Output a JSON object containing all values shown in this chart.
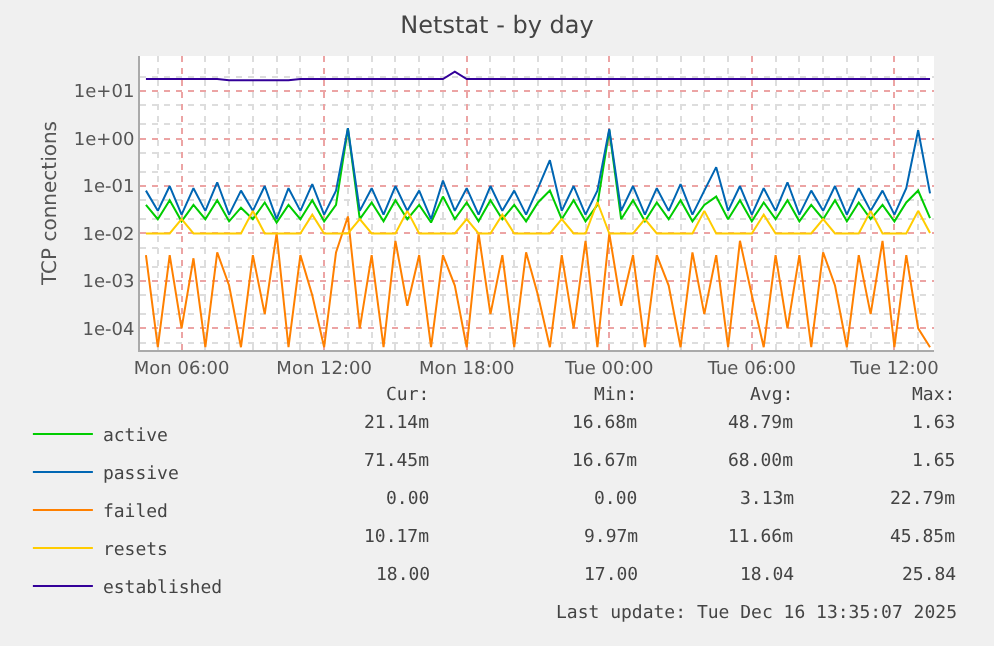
{
  "chart_data": {
    "type": "line",
    "title": "Netstat - by day",
    "ylabel": "TCP connections",
    "log": true,
    "grid": true,
    "legend": "bottom",
    "x": [
      "2025-12-15T04:30",
      "2025-12-15T05:00",
      "2025-12-15T05:30",
      "2025-12-15T06:00",
      "2025-12-15T06:30",
      "2025-12-15T07:00",
      "2025-12-15T07:30",
      "2025-12-15T08:00",
      "2025-12-15T08:30",
      "2025-12-15T09:00",
      "2025-12-15T09:30",
      "2025-12-15T10:00",
      "2025-12-15T10:30",
      "2025-12-15T11:00",
      "2025-12-15T11:30",
      "2025-12-15T12:00",
      "2025-12-15T12:30",
      "2025-12-15T13:00",
      "2025-12-15T13:30",
      "2025-12-15T14:00",
      "2025-12-15T14:30",
      "2025-12-15T15:00",
      "2025-12-15T15:30",
      "2025-12-15T16:00",
      "2025-12-15T16:30",
      "2025-12-15T17:00",
      "2025-12-15T17:30",
      "2025-12-15T18:00",
      "2025-12-15T18:30",
      "2025-12-15T19:00",
      "2025-12-15T19:30",
      "2025-12-15T20:00",
      "2025-12-15T20:30",
      "2025-12-15T21:00",
      "2025-12-15T21:30",
      "2025-12-15T22:00",
      "2025-12-15T22:30",
      "2025-12-15T23:00",
      "2025-12-15T23:30",
      "2025-12-16T00:00",
      "2025-12-16T00:30",
      "2025-12-16T01:00",
      "2025-12-16T01:30",
      "2025-12-16T02:00",
      "2025-12-16T02:30",
      "2025-12-16T03:00",
      "2025-12-16T03:30",
      "2025-12-16T04:00",
      "2025-12-16T04:30",
      "2025-12-16T05:00",
      "2025-12-16T05:30",
      "2025-12-16T06:00",
      "2025-12-16T06:30",
      "2025-12-16T07:00",
      "2025-12-16T07:30",
      "2025-12-16T08:00",
      "2025-12-16T08:30",
      "2025-12-16T09:00",
      "2025-12-16T09:30",
      "2025-12-16T10:00",
      "2025-12-16T10:30",
      "2025-12-16T11:00",
      "2025-12-16T11:30",
      "2025-12-16T12:00",
      "2025-12-16T12:30",
      "2025-12-16T13:00",
      "2025-12-16T13:30"
    ],
    "xlim": [
      "2025-12-15T04:15",
      "2025-12-16T13:40"
    ],
    "xticks": [
      {
        "value": "2025-12-15T06:00",
        "label": "Mon 06:00"
      },
      {
        "value": "2025-12-15T12:00",
        "label": "Mon 12:00"
      },
      {
        "value": "2025-12-15T18:00",
        "label": "Mon 18:00"
      },
      {
        "value": "2025-12-16T00:00",
        "label": "Tue 00:00"
      },
      {
        "value": "2025-12-16T06:00",
        "label": "Tue 06:00"
      },
      {
        "value": "2025-12-16T12:00",
        "label": "Tue 12:00"
      }
    ],
    "ylim": [
      3.5e-05,
      55
    ],
    "yticks": [
      {
        "value": 0.0001,
        "label": "1e-04"
      },
      {
        "value": 0.001,
        "label": "1e-03"
      },
      {
        "value": 0.01,
        "label": "1e-02"
      },
      {
        "value": 0.1,
        "label": "1e-01"
      },
      {
        "value": 1,
        "label": "1e+00"
      },
      {
        "value": 10,
        "label": "1e+01"
      }
    ],
    "series": [
      {
        "name": "active",
        "color": "#00cc00",
        "values": [
          0.04,
          0.02,
          0.05,
          0.018,
          0.04,
          0.02,
          0.05,
          0.018,
          0.035,
          0.02,
          0.045,
          0.017,
          0.04,
          0.02,
          0.05,
          0.018,
          0.04,
          1.63,
          0.02,
          0.045,
          0.018,
          0.05,
          0.02,
          0.04,
          0.017,
          0.06,
          0.02,
          0.045,
          0.018,
          0.05,
          0.02,
          0.04,
          0.018,
          0.045,
          0.08,
          0.02,
          0.05,
          0.018,
          0.04,
          1.5,
          0.02,
          0.05,
          0.018,
          0.045,
          0.02,
          0.05,
          0.018,
          0.04,
          0.06,
          0.02,
          0.05,
          0.018,
          0.045,
          0.02,
          0.05,
          0.018,
          0.04,
          0.02,
          0.05,
          0.018,
          0.045,
          0.02,
          0.04,
          0.018,
          0.045,
          0.08,
          0.021
        ]
      },
      {
        "name": "passive",
        "color": "#0066b3",
        "values": [
          0.08,
          0.03,
          0.1,
          0.025,
          0.09,
          0.03,
          0.12,
          0.025,
          0.08,
          0.03,
          0.1,
          0.02,
          0.09,
          0.03,
          0.11,
          0.025,
          0.08,
          1.65,
          0.03,
          0.09,
          0.025,
          0.1,
          0.03,
          0.08,
          0.02,
          0.13,
          0.03,
          0.09,
          0.025,
          0.1,
          0.03,
          0.08,
          0.025,
          0.09,
          0.35,
          0.03,
          0.1,
          0.025,
          0.08,
          1.6,
          0.03,
          0.1,
          0.025,
          0.09,
          0.03,
          0.11,
          0.025,
          0.08,
          0.25,
          0.03,
          0.1,
          0.025,
          0.09,
          0.03,
          0.12,
          0.025,
          0.08,
          0.03,
          0.1,
          0.025,
          0.09,
          0.03,
          0.08,
          0.025,
          0.09,
          1.5,
          0.07
        ]
      },
      {
        "name": "failed",
        "color": "#ff8000",
        "values": [
          0.0035,
          4e-05,
          0.0035,
          0.0001,
          0.003,
          4e-05,
          0.004,
          0.0008,
          4e-05,
          0.0035,
          0.0002,
          0.01,
          4e-05,
          0.0035,
          0.0005,
          4e-05,
          0.004,
          0.0228,
          0.0001,
          0.0035,
          4e-05,
          0.007,
          0.0003,
          0.0035,
          4e-05,
          0.0035,
          0.0008,
          4e-05,
          0.01,
          0.0002,
          0.0035,
          4e-05,
          0.004,
          0.0005,
          4e-05,
          0.0035,
          0.0001,
          0.007,
          4e-05,
          0.01,
          0.0003,
          0.0035,
          4e-05,
          0.0035,
          0.0008,
          4e-05,
          0.004,
          0.0002,
          0.0035,
          4e-05,
          0.007,
          0.0005,
          4e-05,
          0.0035,
          0.0001,
          0.0035,
          4e-05,
          0.004,
          0.0008,
          4e-05,
          0.0035,
          0.0002,
          0.007,
          4e-05,
          0.0035,
          0.0001,
          4e-05
        ]
      },
      {
        "name": "resets",
        "color": "#ffcc00",
        "values": [
          0.01,
          0.01,
          0.01,
          0.02,
          0.01,
          0.01,
          0.01,
          0.01,
          0.01,
          0.03,
          0.01,
          0.01,
          0.01,
          0.01,
          0.025,
          0.01,
          0.01,
          0.01,
          0.02,
          0.01,
          0.01,
          0.01,
          0.03,
          0.01,
          0.01,
          0.01,
          0.01,
          0.02,
          0.01,
          0.01,
          0.025,
          0.01,
          0.01,
          0.01,
          0.01,
          0.02,
          0.01,
          0.01,
          0.046,
          0.01,
          0.01,
          0.01,
          0.02,
          0.01,
          0.01,
          0.01,
          0.01,
          0.03,
          0.01,
          0.01,
          0.01,
          0.01,
          0.025,
          0.01,
          0.01,
          0.01,
          0.01,
          0.02,
          0.01,
          0.01,
          0.01,
          0.03,
          0.01,
          0.01,
          0.01,
          0.03,
          0.0102
        ]
      },
      {
        "name": "established",
        "color": "#330099",
        "values": [
          18,
          18,
          18,
          18,
          18,
          18,
          18,
          17,
          17,
          17,
          17,
          17,
          17,
          18,
          18,
          18,
          18,
          18,
          18,
          18,
          18,
          18,
          18,
          18,
          18,
          18,
          25.84,
          18,
          18,
          18,
          18,
          18,
          18,
          18,
          18,
          18,
          18,
          18,
          18,
          18,
          18,
          18,
          18,
          18,
          18,
          18,
          18,
          18,
          18,
          18,
          18,
          18,
          18,
          18,
          18,
          18,
          18,
          18,
          18,
          18,
          18,
          18,
          18,
          18,
          18,
          18,
          18
        ]
      }
    ],
    "annotations": [
      "Cur:",
      "Min:",
      "Avg:",
      "Max:",
      "21.14m",
      "16.68m",
      "48.79m",
      "1.63",
      "71.45m",
      "16.67m",
      "68.00m",
      "1.65",
      "0.00",
      "0.00",
      "3.13m",
      "22.79m",
      "10.17m",
      "9.97m",
      "11.66m",
      "45.85m",
      "18.00",
      "17.00",
      "18.04",
      "25.84",
      "Last update: Tue Dec 16 13:35:07 2025"
    ]
  }
}
